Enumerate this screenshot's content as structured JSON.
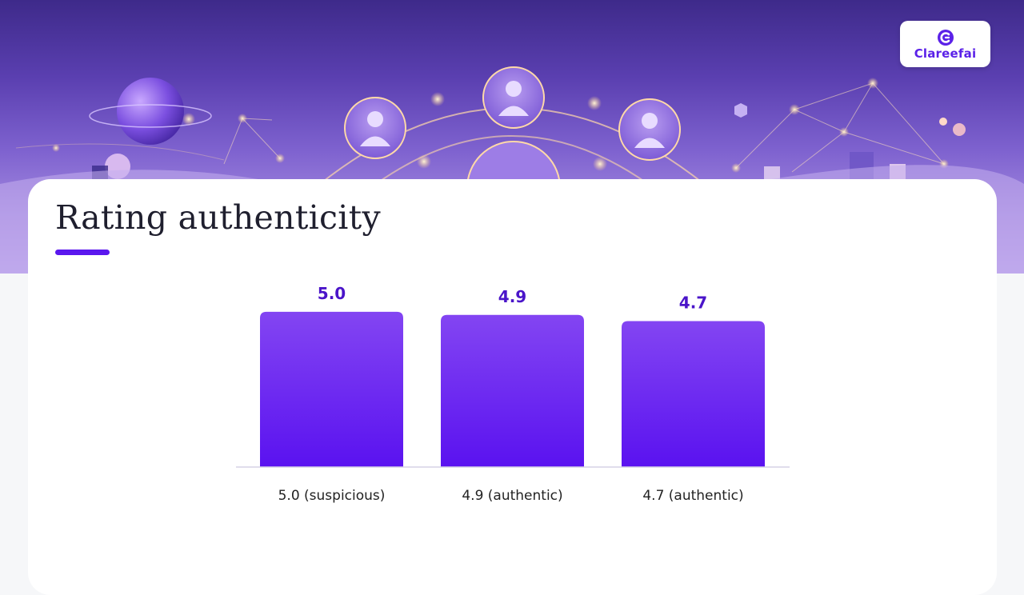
{
  "brand": {
    "logo_text": "Clareefai",
    "accent_color": "#5b21e8"
  },
  "page": {
    "title": "Rating authenticity"
  },
  "chart_data": {
    "type": "bar",
    "categories": [
      "5.0 (suspicious)",
      "4.9 (authentic)",
      "4.7 (authentic)"
    ],
    "values": [
      5.0,
      4.9,
      4.7
    ],
    "data_labels": [
      "5.0",
      "4.9",
      "4.7"
    ],
    "title": "",
    "xlabel": "",
    "ylabel": "",
    "ylim": [
      0,
      5.1
    ],
    "grid": false,
    "legend": "none",
    "bar_color_top": "#8345f2",
    "bar_color_bottom": "#5a12f0",
    "label_color": "#4a14c9"
  }
}
